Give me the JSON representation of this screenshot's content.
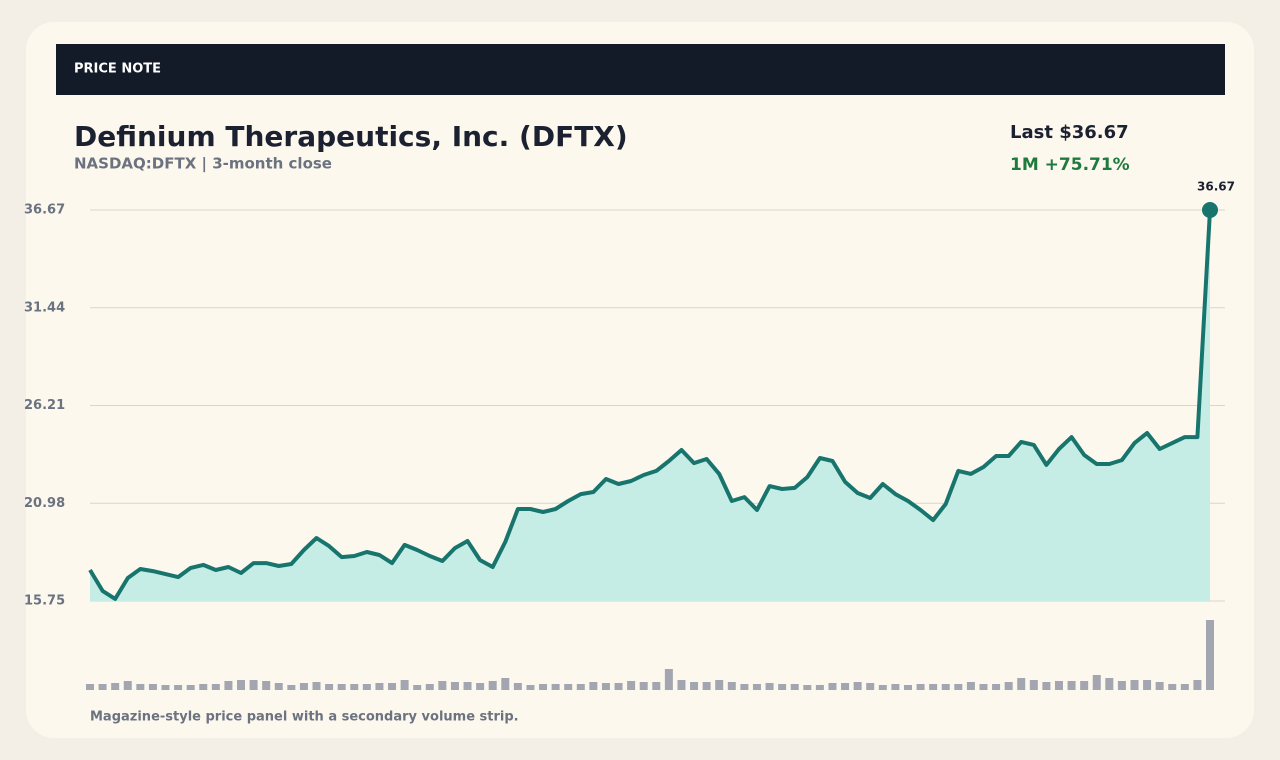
{
  "chart_data": {
    "type": "line",
    "badge": "PRICE NOTE",
    "title": "Definium Therapeutics, Inc. (DFTX)",
    "subtitle": "NASDAQ:DFTX | 3-month close",
    "last_label": "Last $36.67",
    "change_label": "1M +75.71%",
    "caption": "Magazine-style price panel with a secondary volume strip.",
    "color": "#17756d",
    "area_color": "#c6ede5",
    "volume_color": "#a3a6b0",
    "grid": true,
    "ylim": [
      15.75,
      36.67
    ],
    "yticks": [
      15.75,
      20.98,
      26.21,
      31.44,
      36.67
    ],
    "vlim": [
      0,
      70
    ],
    "values": [
      17.41,
      16.29,
      15.86,
      16.98,
      17.46,
      17.35,
      17.19,
      17.03,
      17.52,
      17.68,
      17.41,
      17.57,
      17.25,
      17.78,
      17.78,
      17.62,
      17.73,
      18.48,
      19.12,
      18.69,
      18.1,
      18.16,
      18.37,
      18.21,
      17.78,
      18.75,
      18.48,
      18.16,
      17.89,
      18.58,
      18.96,
      17.94,
      17.57,
      18.91,
      20.67,
      20.67,
      20.51,
      20.67,
      21.1,
      21.47,
      21.58,
      22.28,
      22.01,
      22.17,
      22.49,
      22.71,
      23.24,
      23.83,
      23.13,
      23.35,
      22.55,
      21.1,
      21.31,
      20.62,
      21.9,
      21.74,
      21.8,
      22.38,
      23.4,
      23.24,
      22.12,
      21.53,
      21.26,
      22.01,
      21.47,
      21.1,
      20.62,
      20.08,
      20.94,
      22.71,
      22.55,
      22.92,
      23.51,
      23.51,
      24.26,
      24.1,
      23.03,
      23.88,
      24.52,
      23.56,
      23.08,
      23.08,
      23.29,
      24.2,
      24.74,
      23.88,
      24.2,
      24.52,
      24.52,
      36.67
    ],
    "volume": [
      6,
      6,
      7,
      9,
      6,
      6,
      5,
      5,
      5,
      6,
      6,
      9,
      10,
      10,
      9,
      7,
      5,
      7,
      8,
      6,
      6,
      6,
      6,
      7,
      7,
      10,
      5,
      6,
      9,
      8,
      8,
      7,
      9,
      12,
      7,
      5,
      6,
      6,
      6,
      6,
      8,
      7,
      7,
      9,
      8,
      8,
      21,
      10,
      8,
      8,
      10,
      8,
      6,
      6,
      7,
      6,
      6,
      5,
      5,
      7,
      7,
      8,
      7,
      5,
      6,
      5,
      6,
      6,
      6,
      6,
      8,
      6,
      6,
      8,
      12,
      10,
      8,
      9,
      9,
      9,
      15,
      12,
      9,
      10,
      10,
      8,
      6,
      6,
      10,
      70
    ]
  }
}
